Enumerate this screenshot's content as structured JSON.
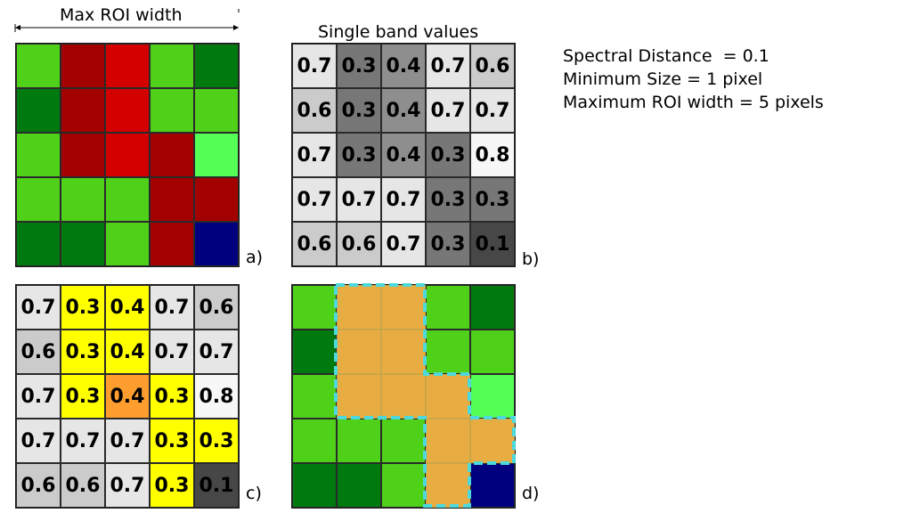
{
  "header": {
    "max_roi_label": "Max ROI width",
    "single_band_label": "Single band values"
  },
  "params": [
    "Spectral Distance  = 0.1",
    "Minimum Size = 1 pixel",
    "Maximum ROI width = 5 pixels"
  ],
  "panels": {
    "a": {
      "label": "a)",
      "colors": [
        [
          "#4fd11a",
          "#a30000",
          "#d40000",
          "#4fd11a",
          "#007a0f"
        ],
        [
          "#007a0f",
          "#a30000",
          "#d40000",
          "#4fd11a",
          "#4fd11a"
        ],
        [
          "#4fd11a",
          "#a30000",
          "#d40000",
          "#a30000",
          "#55ff55"
        ],
        [
          "#4fd11a",
          "#4fd11a",
          "#4fd11a",
          "#a30000",
          "#a30000"
        ],
        [
          "#007a0f",
          "#007a0f",
          "#4fd11a",
          "#a30000",
          "#00007f"
        ]
      ]
    },
    "b": {
      "label": "b)",
      "values": [
        [
          "0.7",
          "0.3",
          "0.4",
          "0.7",
          "0.6"
        ],
        [
          "0.6",
          "0.3",
          "0.4",
          "0.7",
          "0.7"
        ],
        [
          "0.7",
          "0.3",
          "0.4",
          "0.3",
          "0.8"
        ],
        [
          "0.7",
          "0.7",
          "0.7",
          "0.3",
          "0.3"
        ],
        [
          "0.6",
          "0.6",
          "0.7",
          "0.3",
          "0.1"
        ]
      ],
      "colors": [
        [
          "#e6e6e6",
          "#777777",
          "#8e8e8e",
          "#e6e6e6",
          "#cbcbcb"
        ],
        [
          "#cbcbcb",
          "#777777",
          "#8e8e8e",
          "#e6e6e6",
          "#e6e6e6"
        ],
        [
          "#e6e6e6",
          "#777777",
          "#8e8e8e",
          "#777777",
          "#f7f7f7"
        ],
        [
          "#e6e6e6",
          "#e6e6e6",
          "#e6e6e6",
          "#777777",
          "#777777"
        ],
        [
          "#cbcbcb",
          "#cbcbcb",
          "#e6e6e6",
          "#777777",
          "#474747"
        ]
      ]
    },
    "c": {
      "label": "c)",
      "values": [
        [
          "0.7",
          "0.3",
          "0.4",
          "0.7",
          "0.6"
        ],
        [
          "0.6",
          "0.3",
          "0.4",
          "0.7",
          "0.7"
        ],
        [
          "0.7",
          "0.3",
          "0.4",
          "0.3",
          "0.8"
        ],
        [
          "0.7",
          "0.7",
          "0.7",
          "0.3",
          "0.3"
        ],
        [
          "0.6",
          "0.6",
          "0.7",
          "0.3",
          "0.1"
        ]
      ],
      "colors": [
        [
          "#e6e6e6",
          "#ffff00",
          "#ffff00",
          "#e6e6e6",
          "#cbcbcb"
        ],
        [
          "#cbcbcb",
          "#ffff00",
          "#ffff00",
          "#e6e6e6",
          "#e6e6e6"
        ],
        [
          "#e6e6e6",
          "#ffff00",
          "#ff9d2e",
          "#ffff00",
          "#f7f7f7"
        ],
        [
          "#e6e6e6",
          "#e6e6e6",
          "#e6e6e6",
          "#ffff00",
          "#ffff00"
        ],
        [
          "#cbcbcb",
          "#cbcbcb",
          "#e6e6e6",
          "#ffff00",
          "#474747"
        ]
      ]
    },
    "d": {
      "label": "d)",
      "roi_color": "#e8ad42",
      "roi_border_color": "#4dd8dc",
      "colors": [
        [
          "#4fd11a",
          "#e8ad42",
          "#e8ad42",
          "#4fd11a",
          "#007a0f"
        ],
        [
          "#007a0f",
          "#e8ad42",
          "#e8ad42",
          "#4fd11a",
          "#4fd11a"
        ],
        [
          "#4fd11a",
          "#e8ad42",
          "#e8ad42",
          "#e8ad42",
          "#55ff55"
        ],
        [
          "#4fd11a",
          "#4fd11a",
          "#4fd11a",
          "#e8ad42",
          "#e8ad42"
        ],
        [
          "#007a0f",
          "#007a0f",
          "#4fd11a",
          "#e8ad42",
          "#00007f"
        ]
      ]
    }
  }
}
